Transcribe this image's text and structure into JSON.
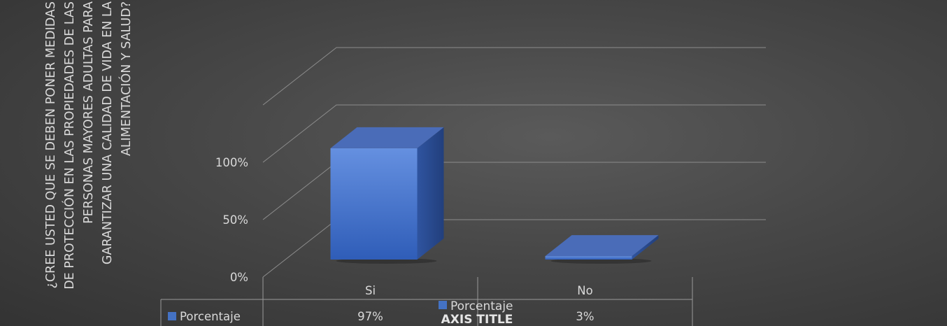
{
  "chart_data": {
    "type": "bar",
    "style": "3d-column-with-data-table",
    "categories": [
      "Si",
      "No"
    ],
    "series": [
      {
        "name": "Porcentaje",
        "values": [
          0.97,
          0.03
        ],
        "display_values": [
          "97%",
          "3%"
        ],
        "color": "#4472c4"
      }
    ],
    "ylabel": "¿CREE USTED QUE SE DEBEN PONER MEDIDAS DE PROTECCIÓN EN LAS PROPIEDADES DE LAS PERSONAS MAYORES ADULTAS PARA GARANTIZAR UNA CALIDAD DE VIDA EN LA ALIMENTACIÓN Y SALUD?",
    "xlabel": "AXIS TITLE",
    "yticks": [
      0,
      0.5,
      1
    ],
    "ytick_labels": [
      "0%",
      "50%",
      "100%"
    ],
    "ylim": [
      0,
      1.5
    ],
    "grid": true,
    "legend": {
      "position": "bottom-center",
      "label": "Porcentaje"
    },
    "data_table": {
      "row_label": "Porcentaje"
    },
    "colors": {
      "background": "#404040",
      "text": "#d9d9d9",
      "grid": "#8c8c8c",
      "bar_front": "#4472c4"
    }
  }
}
